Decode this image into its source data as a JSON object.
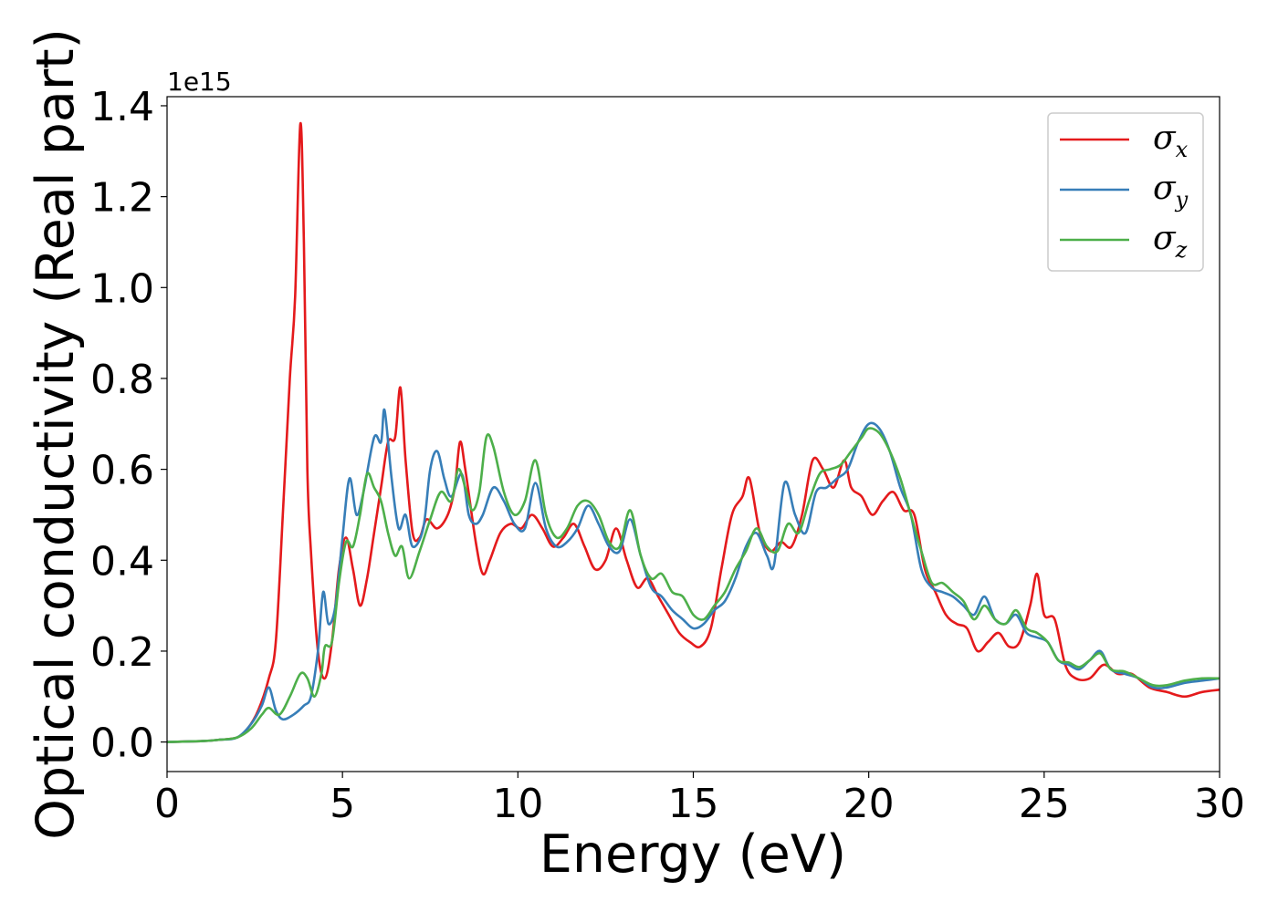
{
  "chart_data": {
    "type": "line",
    "title": "",
    "xlabel": "Energy (eV)",
    "ylabel": "Optical conductivity (Real part)",
    "y_offset_label": "1e15",
    "xlim": [
      0,
      30
    ],
    "ylim": [
      -0.065,
      1.42
    ],
    "xticks": [
      0,
      5,
      10,
      15,
      20,
      25,
      30
    ],
    "yticks": [
      0.0,
      0.2,
      0.4,
      0.6,
      0.8,
      1.0,
      1.2,
      1.4
    ],
    "ytick_labels": [
      "0.0",
      "0.2",
      "0.4",
      "0.6",
      "0.8",
      "1.0",
      "1.2",
      "1.4"
    ],
    "grid": false,
    "legend_position": "top-right",
    "series": [
      {
        "name": "σx",
        "symbol": "σ",
        "subscript": "x",
        "color": "#e41a1c",
        "points": [
          [
            0,
            0
          ],
          [
            1,
            0.002
          ],
          [
            1.5,
            0.005
          ],
          [
            2,
            0.01
          ],
          [
            2.3,
            0.03
          ],
          [
            2.6,
            0.07
          ],
          [
            2.9,
            0.14
          ],
          [
            3.1,
            0.22
          ],
          [
            3.3,
            0.5
          ],
          [
            3.5,
            0.8
          ],
          [
            3.65,
            0.98
          ],
          [
            3.8,
            1.36
          ],
          [
            3.9,
            1.1
          ],
          [
            4.0,
            0.6
          ],
          [
            4.1,
            0.42
          ],
          [
            4.3,
            0.2
          ],
          [
            4.5,
            0.14
          ],
          [
            4.7,
            0.22
          ],
          [
            4.9,
            0.38
          ],
          [
            5.1,
            0.45
          ],
          [
            5.3,
            0.38
          ],
          [
            5.5,
            0.3
          ],
          [
            5.7,
            0.36
          ],
          [
            5.9,
            0.46
          ],
          [
            6.1,
            0.56
          ],
          [
            6.3,
            0.66
          ],
          [
            6.5,
            0.67
          ],
          [
            6.65,
            0.78
          ],
          [
            6.8,
            0.62
          ],
          [
            7.0,
            0.46
          ],
          [
            7.2,
            0.45
          ],
          [
            7.4,
            0.49
          ],
          [
            7.7,
            0.47
          ],
          [
            8.0,
            0.5
          ],
          [
            8.2,
            0.56
          ],
          [
            8.35,
            0.66
          ],
          [
            8.5,
            0.6
          ],
          [
            8.8,
            0.44
          ],
          [
            9.0,
            0.37
          ],
          [
            9.2,
            0.4
          ],
          [
            9.5,
            0.46
          ],
          [
            9.8,
            0.48
          ],
          [
            10.1,
            0.47
          ],
          [
            10.4,
            0.5
          ],
          [
            10.7,
            0.47
          ],
          [
            11.0,
            0.43
          ],
          [
            11.3,
            0.45
          ],
          [
            11.6,
            0.48
          ],
          [
            11.9,
            0.43
          ],
          [
            12.2,
            0.38
          ],
          [
            12.5,
            0.4
          ],
          [
            12.8,
            0.47
          ],
          [
            13.1,
            0.4
          ],
          [
            13.4,
            0.34
          ],
          [
            13.7,
            0.36
          ],
          [
            14.0,
            0.32
          ],
          [
            14.3,
            0.28
          ],
          [
            14.6,
            0.24
          ],
          [
            14.9,
            0.22
          ],
          [
            15.2,
            0.21
          ],
          [
            15.5,
            0.25
          ],
          [
            15.8,
            0.38
          ],
          [
            16.1,
            0.5
          ],
          [
            16.4,
            0.54
          ],
          [
            16.6,
            0.58
          ],
          [
            16.9,
            0.46
          ],
          [
            17.2,
            0.42
          ],
          [
            17.5,
            0.44
          ],
          [
            17.8,
            0.43
          ],
          [
            18.1,
            0.5
          ],
          [
            18.4,
            0.62
          ],
          [
            18.7,
            0.6
          ],
          [
            19.0,
            0.56
          ],
          [
            19.3,
            0.62
          ],
          [
            19.5,
            0.56
          ],
          [
            19.8,
            0.54
          ],
          [
            20.1,
            0.5
          ],
          [
            20.4,
            0.53
          ],
          [
            20.7,
            0.55
          ],
          [
            21.0,
            0.51
          ],
          [
            21.3,
            0.5
          ],
          [
            21.6,
            0.38
          ],
          [
            21.9,
            0.33
          ],
          [
            22.2,
            0.28
          ],
          [
            22.5,
            0.26
          ],
          [
            22.8,
            0.25
          ],
          [
            23.1,
            0.2
          ],
          [
            23.4,
            0.22
          ],
          [
            23.7,
            0.24
          ],
          [
            24.0,
            0.21
          ],
          [
            24.3,
            0.22
          ],
          [
            24.6,
            0.3
          ],
          [
            24.8,
            0.37
          ],
          [
            25.0,
            0.28
          ],
          [
            25.3,
            0.27
          ],
          [
            25.6,
            0.17
          ],
          [
            25.9,
            0.14
          ],
          [
            26.3,
            0.14
          ],
          [
            26.7,
            0.17
          ],
          [
            27.1,
            0.15
          ],
          [
            27.5,
            0.15
          ],
          [
            28.0,
            0.12
          ],
          [
            28.5,
            0.11
          ],
          [
            29.0,
            0.1
          ],
          [
            29.5,
            0.11
          ],
          [
            30,
            0.115
          ]
        ]
      },
      {
        "name": "σy",
        "symbol": "σ",
        "subscript": "y",
        "color": "#377eb8",
        "points": [
          [
            0,
            0
          ],
          [
            1,
            0.002
          ],
          [
            1.5,
            0.005
          ],
          [
            2,
            0.01
          ],
          [
            2.4,
            0.04
          ],
          [
            2.7,
            0.08
          ],
          [
            2.9,
            0.12
          ],
          [
            3.1,
            0.07
          ],
          [
            3.3,
            0.05
          ],
          [
            3.6,
            0.06
          ],
          [
            3.9,
            0.08
          ],
          [
            4.1,
            0.1
          ],
          [
            4.3,
            0.2
          ],
          [
            4.45,
            0.33
          ],
          [
            4.6,
            0.26
          ],
          [
            4.8,
            0.3
          ],
          [
            5.0,
            0.45
          ],
          [
            5.2,
            0.58
          ],
          [
            5.4,
            0.5
          ],
          [
            5.6,
            0.55
          ],
          [
            5.9,
            0.67
          ],
          [
            6.1,
            0.66
          ],
          [
            6.2,
            0.73
          ],
          [
            6.4,
            0.58
          ],
          [
            6.6,
            0.47
          ],
          [
            6.8,
            0.5
          ],
          [
            7.0,
            0.43
          ],
          [
            7.3,
            0.47
          ],
          [
            7.5,
            0.6
          ],
          [
            7.7,
            0.64
          ],
          [
            7.9,
            0.58
          ],
          [
            8.1,
            0.54
          ],
          [
            8.4,
            0.59
          ],
          [
            8.6,
            0.5
          ],
          [
            8.8,
            0.48
          ],
          [
            9.0,
            0.5
          ],
          [
            9.3,
            0.56
          ],
          [
            9.6,
            0.53
          ],
          [
            9.9,
            0.48
          ],
          [
            10.2,
            0.47
          ],
          [
            10.5,
            0.57
          ],
          [
            10.8,
            0.47
          ],
          [
            11.1,
            0.43
          ],
          [
            11.4,
            0.44
          ],
          [
            11.7,
            0.47
          ],
          [
            12.0,
            0.52
          ],
          [
            12.3,
            0.48
          ],
          [
            12.6,
            0.43
          ],
          [
            12.9,
            0.42
          ],
          [
            13.2,
            0.49
          ],
          [
            13.5,
            0.41
          ],
          [
            13.8,
            0.34
          ],
          [
            14.1,
            0.32
          ],
          [
            14.4,
            0.29
          ],
          [
            14.7,
            0.27
          ],
          [
            15.0,
            0.25
          ],
          [
            15.3,
            0.26
          ],
          [
            15.6,
            0.29
          ],
          [
            15.9,
            0.31
          ],
          [
            16.2,
            0.36
          ],
          [
            16.5,
            0.43
          ],
          [
            16.8,
            0.46
          ],
          [
            17.1,
            0.41
          ],
          [
            17.3,
            0.39
          ],
          [
            17.6,
            0.57
          ],
          [
            17.9,
            0.5
          ],
          [
            18.2,
            0.46
          ],
          [
            18.5,
            0.55
          ],
          [
            18.8,
            0.56
          ],
          [
            19.1,
            0.58
          ],
          [
            19.4,
            0.6
          ],
          [
            19.7,
            0.66
          ],
          [
            20.0,
            0.7
          ],
          [
            20.3,
            0.69
          ],
          [
            20.6,
            0.64
          ],
          [
            20.9,
            0.56
          ],
          [
            21.2,
            0.5
          ],
          [
            21.5,
            0.38
          ],
          [
            21.8,
            0.34
          ],
          [
            22.1,
            0.33
          ],
          [
            22.4,
            0.32
          ],
          [
            22.7,
            0.3
          ],
          [
            23.0,
            0.28
          ],
          [
            23.3,
            0.32
          ],
          [
            23.6,
            0.27
          ],
          [
            23.9,
            0.26
          ],
          [
            24.2,
            0.28
          ],
          [
            24.5,
            0.24
          ],
          [
            24.8,
            0.23
          ],
          [
            25.1,
            0.22
          ],
          [
            25.4,
            0.18
          ],
          [
            25.7,
            0.17
          ],
          [
            26.0,
            0.16
          ],
          [
            26.3,
            0.18
          ],
          [
            26.6,
            0.2
          ],
          [
            26.9,
            0.16
          ],
          [
            27.3,
            0.15
          ],
          [
            27.7,
            0.14
          ],
          [
            28.1,
            0.12
          ],
          [
            28.5,
            0.12
          ],
          [
            29.0,
            0.13
          ],
          [
            29.5,
            0.135
          ],
          [
            30,
            0.14
          ]
        ]
      },
      {
        "name": "σz",
        "symbol": "σ",
        "subscript": "z",
        "color": "#4daf4a",
        "points": [
          [
            0,
            0
          ],
          [
            1,
            0.002
          ],
          [
            1.5,
            0.005
          ],
          [
            2,
            0.01
          ],
          [
            2.4,
            0.03
          ],
          [
            2.7,
            0.06
          ],
          [
            2.9,
            0.075
          ],
          [
            3.2,
            0.06
          ],
          [
            3.5,
            0.1
          ],
          [
            3.8,
            0.15
          ],
          [
            4.0,
            0.14
          ],
          [
            4.2,
            0.1
          ],
          [
            4.4,
            0.15
          ],
          [
            4.5,
            0.21
          ],
          [
            4.7,
            0.22
          ],
          [
            4.9,
            0.35
          ],
          [
            5.1,
            0.44
          ],
          [
            5.3,
            0.43
          ],
          [
            5.5,
            0.5
          ],
          [
            5.7,
            0.59
          ],
          [
            5.9,
            0.56
          ],
          [
            6.1,
            0.53
          ],
          [
            6.3,
            0.46
          ],
          [
            6.5,
            0.41
          ],
          [
            6.7,
            0.43
          ],
          [
            6.9,
            0.36
          ],
          [
            7.2,
            0.42
          ],
          [
            7.5,
            0.49
          ],
          [
            7.8,
            0.55
          ],
          [
            8.1,
            0.53
          ],
          [
            8.3,
            0.6
          ],
          [
            8.5,
            0.56
          ],
          [
            8.7,
            0.51
          ],
          [
            8.9,
            0.55
          ],
          [
            9.1,
            0.67
          ],
          [
            9.3,
            0.65
          ],
          [
            9.6,
            0.55
          ],
          [
            9.9,
            0.5
          ],
          [
            10.2,
            0.53
          ],
          [
            10.5,
            0.62
          ],
          [
            10.8,
            0.5
          ],
          [
            11.1,
            0.45
          ],
          [
            11.4,
            0.47
          ],
          [
            11.7,
            0.52
          ],
          [
            12.0,
            0.53
          ],
          [
            12.3,
            0.5
          ],
          [
            12.6,
            0.44
          ],
          [
            12.9,
            0.43
          ],
          [
            13.2,
            0.51
          ],
          [
            13.5,
            0.41
          ],
          [
            13.8,
            0.36
          ],
          [
            14.1,
            0.37
          ],
          [
            14.4,
            0.33
          ],
          [
            14.7,
            0.32
          ],
          [
            15.0,
            0.28
          ],
          [
            15.3,
            0.27
          ],
          [
            15.6,
            0.3
          ],
          [
            15.9,
            0.33
          ],
          [
            16.2,
            0.38
          ],
          [
            16.5,
            0.42
          ],
          [
            16.8,
            0.47
          ],
          [
            17.1,
            0.43
          ],
          [
            17.4,
            0.42
          ],
          [
            17.7,
            0.48
          ],
          [
            18.0,
            0.46
          ],
          [
            18.3,
            0.53
          ],
          [
            18.6,
            0.59
          ],
          [
            18.9,
            0.6
          ],
          [
            19.2,
            0.61
          ],
          [
            19.5,
            0.64
          ],
          [
            19.8,
            0.67
          ],
          [
            20.0,
            0.69
          ],
          [
            20.3,
            0.68
          ],
          [
            20.6,
            0.64
          ],
          [
            20.9,
            0.58
          ],
          [
            21.2,
            0.5
          ],
          [
            21.5,
            0.42
          ],
          [
            21.8,
            0.35
          ],
          [
            22.1,
            0.35
          ],
          [
            22.4,
            0.33
          ],
          [
            22.7,
            0.31
          ],
          [
            23.0,
            0.27
          ],
          [
            23.3,
            0.3
          ],
          [
            23.6,
            0.27
          ],
          [
            23.9,
            0.26
          ],
          [
            24.2,
            0.29
          ],
          [
            24.5,
            0.25
          ],
          [
            24.8,
            0.24
          ],
          [
            25.1,
            0.22
          ],
          [
            25.4,
            0.18
          ],
          [
            25.7,
            0.175
          ],
          [
            26.0,
            0.165
          ],
          [
            26.3,
            0.18
          ],
          [
            26.6,
            0.195
          ],
          [
            26.9,
            0.16
          ],
          [
            27.3,
            0.155
          ],
          [
            27.7,
            0.14
          ],
          [
            28.1,
            0.125
          ],
          [
            28.5,
            0.125
          ],
          [
            29.0,
            0.135
          ],
          [
            29.5,
            0.14
          ],
          [
            30,
            0.14
          ]
        ]
      }
    ]
  }
}
